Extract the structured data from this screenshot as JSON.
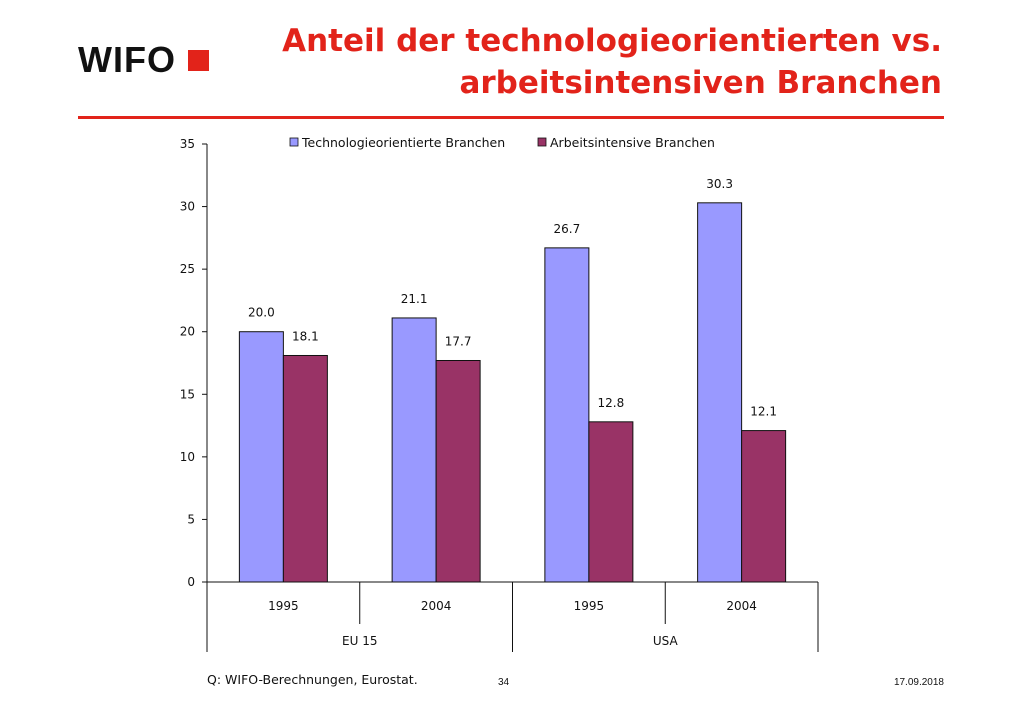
{
  "logo": {
    "text": "WIFO"
  },
  "title": "Anteil der technologieorientierten vs. arbeitsintensiven Branchen",
  "colors": {
    "accent": "#e2231a",
    "series1": "#9999ff",
    "series2": "#993366"
  },
  "chart_data": {
    "type": "bar",
    "categories": [
      "1995",
      "2004",
      "1995",
      "2004"
    ],
    "groups": [
      {
        "label": "EU 15",
        "categories": [
          "1995",
          "2004"
        ]
      },
      {
        "label": "USA",
        "categories": [
          "1995",
          "2004"
        ]
      }
    ],
    "series": [
      {
        "name": "Technologieorientierte Branchen",
        "values": [
          20.0,
          21.1,
          26.7,
          30.3
        ],
        "labels": [
          "20.0",
          "21.1",
          "26.7",
          "30.3"
        ]
      },
      {
        "name": "Arbeitsintensive Branchen",
        "values": [
          18.1,
          17.7,
          12.8,
          12.1
        ],
        "labels": [
          "18.1",
          "17.7",
          "12.8",
          "12.1"
        ]
      }
    ],
    "ylim": [
      0,
      35
    ],
    "yticks": [
      "0",
      "5",
      "10",
      "15",
      "20",
      "25",
      "30",
      "35"
    ],
    "legend_position": "top",
    "grid": false
  },
  "footer": {
    "source": "Q: WIFO-Berechnungen, Eurostat.",
    "page": "34",
    "date": "17.09.2018"
  }
}
